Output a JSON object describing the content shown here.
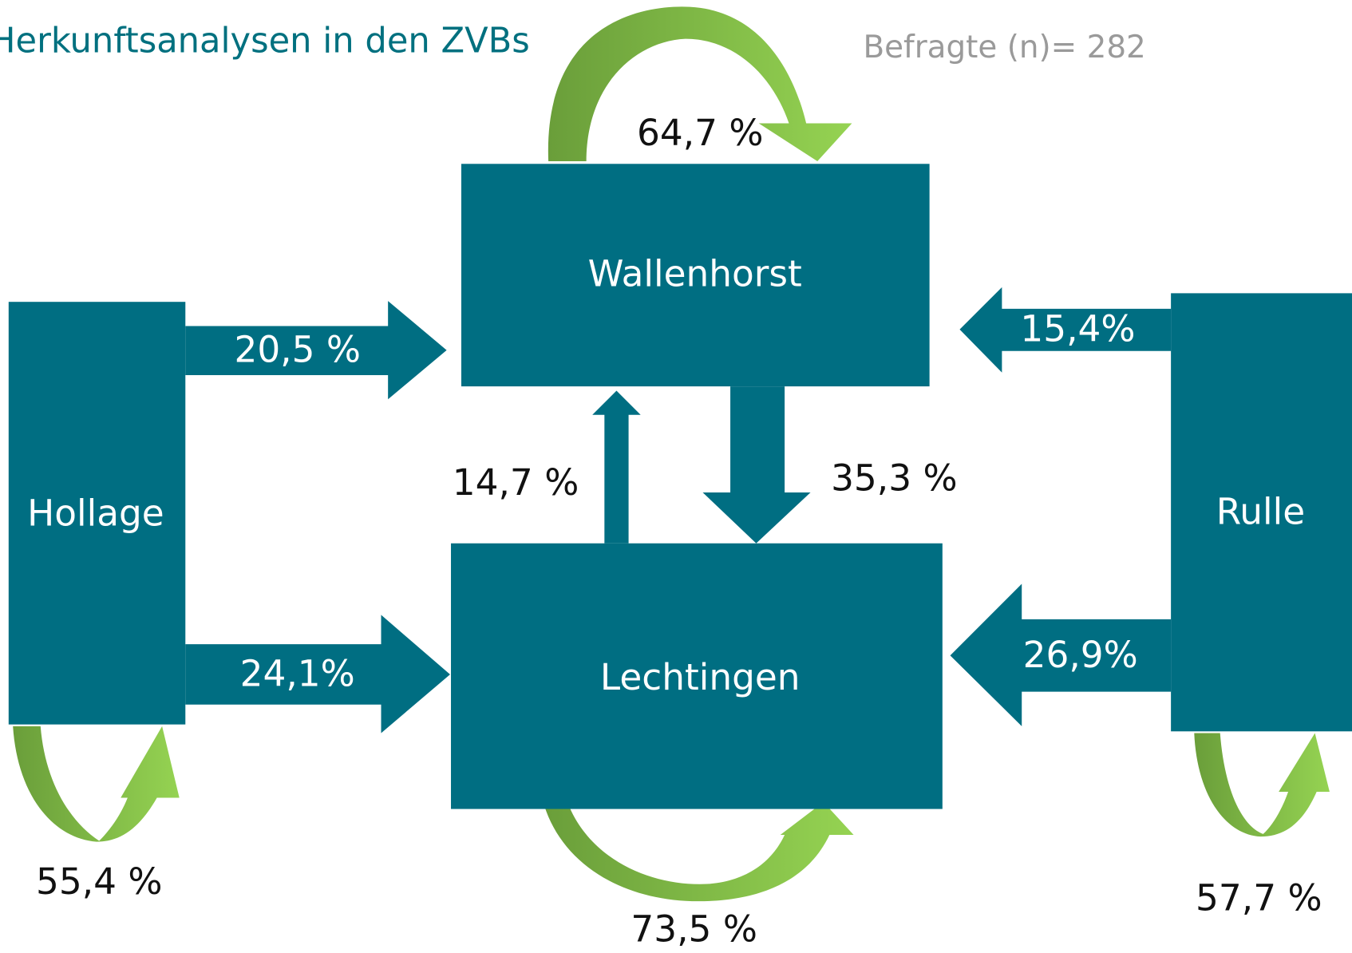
{
  "title": "Herkunftsanalysen in den ZVBs",
  "note": "Befragte (n)= 282",
  "nodes": [
    {
      "label": "Wallenhorst"
    },
    {
      "label": "Hollage"
    },
    {
      "label": "Lechtingen"
    },
    {
      "label": "Rulle"
    }
  ],
  "flows": [
    {
      "label": "64,7 %"
    },
    {
      "label": "20,5 %"
    },
    {
      "label": "15,4%"
    },
    {
      "label": "14,7 %"
    },
    {
      "label": "35,3 %"
    },
    {
      "label": "24,1%"
    },
    {
      "label": "26,9%"
    },
    {
      "label": "55,4 %"
    },
    {
      "label": "73,5 %"
    },
    {
      "label": "57,7 %"
    }
  ]
}
